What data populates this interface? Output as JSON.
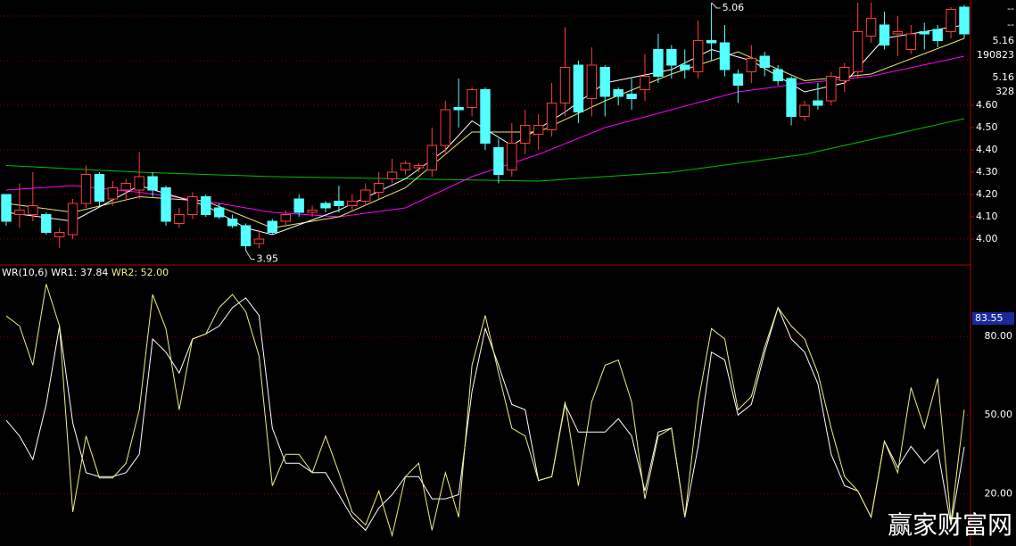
{
  "chart_data": [
    {
      "type": "candlestick",
      "up_color": "#ff3c3c",
      "down_color": "#54ffff",
      "open": [
        4.2,
        4.11,
        4.11,
        4.11,
        4.01,
        4.02,
        4.16,
        4.29,
        4.18,
        4.22,
        4.22,
        4.28,
        4.23,
        4.07,
        4.11,
        4.19,
        4.14,
        4.09,
        4.06,
        3.98,
        4.08,
        4.08,
        4.18,
        4.12,
        4.16,
        4.17,
        4.15,
        4.17,
        4.21,
        4.27,
        4.31,
        4.32,
        4.31,
        4.42,
        4.59,
        4.59,
        4.67,
        4.41,
        4.31,
        4.43,
        4.47,
        4.49,
        4.61,
        4.78,
        4.63,
        4.77,
        4.67,
        4.65,
        4.67,
        4.85,
        4.85,
        4.78,
        4.75,
        4.89,
        4.88,
        4.74,
        4.75,
        4.82,
        4.76,
        4.72,
        4.55,
        4.62,
        4.62,
        4.71,
        4.75,
        4.91,
        4.96,
        4.92,
        4.85,
        4.93,
        4.94,
        4.93,
        5.04
      ],
      "high": [
        4.2,
        4.25,
        4.3,
        4.12,
        4.05,
        4.18,
        4.33,
        4.3,
        4.26,
        4.27,
        4.39,
        4.3,
        4.24,
        4.14,
        4.21,
        4.2,
        4.16,
        4.11,
        4.07,
        4.04,
        4.09,
        4.13,
        4.2,
        4.15,
        4.17,
        4.24,
        4.2,
        4.25,
        4.3,
        4.36,
        4.35,
        4.34,
        4.5,
        4.62,
        4.72,
        4.68,
        4.68,
        4.45,
        4.52,
        4.58,
        4.56,
        4.7,
        4.95,
        4.8,
        4.86,
        4.78,
        4.68,
        4.72,
        4.83,
        4.92,
        4.87,
        4.85,
        4.98,
        5.06,
        4.96,
        4.76,
        4.87,
        4.84,
        4.78,
        4.73,
        4.62,
        4.7,
        4.75,
        4.79,
        5.06,
        5.06,
        5.02,
        5.0,
        4.96,
        4.97,
        4.96,
        5.04,
        5.05
      ],
      "low": [
        4.06,
        4.05,
        4.08,
        4.02,
        3.96,
        4.0,
        4.14,
        4.15,
        4.15,
        4.17,
        4.18,
        4.19,
        4.06,
        4.05,
        4.09,
        4.1,
        4.09,
        4.05,
        3.95,
        3.96,
        4.02,
        4.06,
        4.1,
        4.1,
        4.12,
        4.12,
        4.13,
        4.15,
        4.18,
        4.25,
        4.29,
        4.3,
        4.28,
        4.38,
        4.5,
        4.55,
        4.4,
        4.25,
        4.28,
        4.38,
        4.4,
        4.46,
        4.55,
        4.52,
        4.55,
        4.55,
        4.6,
        4.58,
        4.62,
        4.7,
        4.72,
        4.72,
        4.72,
        4.8,
        4.73,
        4.61,
        4.7,
        4.73,
        4.69,
        4.51,
        4.53,
        4.58,
        4.6,
        4.66,
        4.72,
        4.88,
        4.85,
        4.82,
        4.83,
        4.85,
        4.86,
        4.9,
        4.9
      ],
      "close": [
        4.08,
        4.13,
        4.15,
        4.03,
        4.03,
        4.16,
        4.29,
        4.17,
        4.23,
        4.25,
        4.28,
        4.22,
        4.08,
        4.11,
        4.19,
        4.11,
        4.1,
        4.06,
        3.97,
        4.0,
        4.03,
        4.11,
        4.12,
        4.13,
        4.14,
        4.15,
        4.17,
        4.22,
        4.25,
        4.3,
        4.34,
        4.33,
        4.42,
        4.58,
        4.58,
        4.67,
        4.43,
        4.29,
        4.43,
        4.51,
        4.51,
        4.61,
        4.77,
        4.57,
        4.78,
        4.64,
        4.64,
        4.63,
        4.73,
        4.73,
        4.78,
        4.76,
        4.89,
        4.88,
        4.76,
        4.69,
        4.81,
        4.77,
        4.71,
        4.55,
        4.6,
        4.6,
        4.73,
        4.77,
        4.93,
        4.99,
        4.87,
        4.93,
        4.92,
        4.92,
        4.89,
        5.03,
        4.92
      ],
      "series": [
        {
          "color": "#00c000",
          "x": [
            0,
            10,
            20,
            30,
            40,
            50,
            60,
            72
          ],
          "values": [
            4.33,
            4.3,
            4.28,
            4.27,
            4.26,
            4.3,
            4.38,
            4.54
          ]
        },
        {
          "color": "#ff00ff",
          "x": [
            0,
            5,
            10,
            15,
            20,
            25,
            30,
            35,
            40,
            45,
            50,
            55,
            60,
            65,
            72
          ],
          "values": [
            4.22,
            4.24,
            4.21,
            4.17,
            4.12,
            4.1,
            4.14,
            4.28,
            4.38,
            4.5,
            4.58,
            4.66,
            4.7,
            4.73,
            4.82
          ]
        },
        {
          "color": "#e8e870",
          "x": [
            0,
            5,
            10,
            15,
            20,
            25,
            30,
            35,
            40,
            45,
            50,
            55,
            60,
            65,
            72
          ],
          "values": [
            4.16,
            4.12,
            4.19,
            4.17,
            4.05,
            4.1,
            4.23,
            4.48,
            4.48,
            4.62,
            4.74,
            4.84,
            4.71,
            4.74,
            4.9
          ]
        },
        {
          "color": "#ffffff",
          "x": [
            0,
            5,
            10,
            15,
            18,
            20,
            25,
            30,
            33,
            35,
            38,
            42,
            45,
            50,
            53,
            56,
            60,
            63,
            66,
            72
          ],
          "values": [
            4.12,
            4.08,
            4.24,
            4.15,
            4.05,
            4.02,
            4.13,
            4.27,
            4.4,
            4.53,
            4.42,
            4.57,
            4.7,
            4.76,
            4.85,
            4.8,
            4.66,
            4.7,
            4.9,
            4.96
          ]
        }
      ],
      "annotations": [
        {
          "label": "5.06",
          "value": 5.06
        },
        {
          "label": "3.95",
          "value": 3.95
        }
      ],
      "ylim": [
        3.884,
        5.072
      ],
      "yticks": [
        {
          "value": 4.0,
          "label": "4.00"
        },
        {
          "value": 4.1,
          "label": "4.10"
        },
        {
          "value": 4.2,
          "label": "4.20"
        },
        {
          "value": 4.3,
          "label": "4.30"
        },
        {
          "value": 4.4,
          "label": "4.40"
        },
        {
          "value": 4.5,
          "label": "4.50"
        },
        {
          "value": 4.6,
          "label": "4.60"
        }
      ],
      "grid_values": [
        4.0,
        4.2,
        4.4,
        4.6,
        4.8,
        5.0
      ],
      "side_labels": [
        {
          "text": "--",
          "color": "#ffffff"
        },
        {
          "text": "--",
          "color": "#ffffff"
        },
        {
          "text": "5.16",
          "color": "#ffffff"
        },
        {
          "text": "190823",
          "color": "#ffffff"
        },
        {
          "text": "5.16",
          "color": "#ff4040"
        },
        {
          "text": "328",
          "color": "#40ff40"
        }
      ]
    },
    {
      "type": "line",
      "title": "WR(10,6)",
      "cursor_label": "83.55",
      "watermark": "赢家财富网",
      "series": [
        {
          "name": "WR1:",
          "color": "#ffffff",
          "last_label": "37.84",
          "values": [
            48,
            42,
            33,
            54,
            84,
            47,
            28,
            26.5,
            26.5,
            28,
            35,
            79,
            74,
            66,
            79,
            81,
            84,
            91,
            94.7,
            88,
            45,
            31.6,
            31.6,
            28,
            28,
            19.6,
            11,
            6,
            14.5,
            19.6,
            26.5,
            26.5,
            18,
            18,
            19.6,
            59,
            83,
            69,
            54,
            52,
            25,
            26.5,
            54,
            43.5,
            43.5,
            43.5,
            48.6,
            42,
            21,
            43.5,
            45,
            11,
            38,
            74,
            71,
            50,
            54,
            74,
            91,
            79,
            74,
            62,
            35,
            23,
            21,
            11,
            40,
            30,
            38,
            31.6,
            36.7,
            8,
            37.84
          ]
        },
        {
          "name": "WR2:",
          "color": "#f0f080",
          "last_label": "52.00",
          "values": [
            87.8,
            84,
            69,
            100,
            84,
            13,
            42,
            26,
            26,
            31.6,
            52,
            96,
            83,
            52,
            79,
            81,
            91,
            96,
            89.5,
            72.5,
            23,
            35,
            35,
            28,
            42,
            28,
            13,
            8,
            21,
            4,
            26.5,
            31.6,
            6,
            28,
            11,
            69,
            88,
            66,
            45,
            42,
            25,
            26.5,
            55,
            23,
            55,
            69,
            71,
            55,
            18,
            42,
            45,
            11,
            55,
            83,
            79,
            52,
            57,
            76,
            91,
            84,
            79,
            66,
            45,
            26.5,
            21,
            11,
            40,
            28,
            60.5,
            45,
            64,
            9.4,
            52
          ]
        }
      ],
      "ylim": [
        0,
        106.6
      ],
      "yticks": [
        {
          "value": 80,
          "label": "80.00"
        },
        {
          "value": 50,
          "label": "50.00"
        },
        {
          "value": 20,
          "label": "20.00"
        }
      ]
    }
  ]
}
